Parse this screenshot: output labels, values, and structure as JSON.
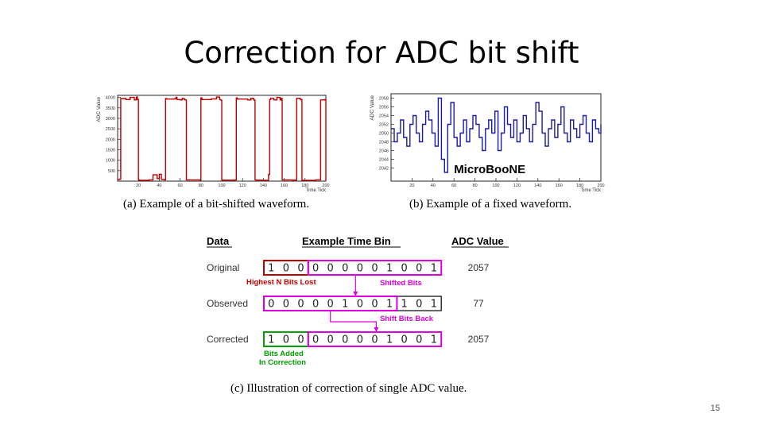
{
  "title": "Correction for ADC bit shift",
  "slide_number": "15",
  "colors": {
    "red": "#c00000",
    "blue": "#1a1aa8",
    "magenta": "#dd00dd",
    "green": "#00a000",
    "gray": "#555555"
  },
  "chart_data": [
    {
      "type": "line",
      "xlabel": "Time Tick",
      "ylabel": "ADC Value",
      "xlim": [
        0,
        200
      ],
      "ylim": [
        0,
        4100
      ],
      "xticks": [
        "20",
        "40",
        "60",
        "80",
        "100",
        "120",
        "140",
        "160",
        "180",
        "200"
      ],
      "yticks": [
        "500",
        "1000",
        "1500",
        "2000",
        "2500",
        "3000",
        "3500",
        "4000"
      ],
      "series": [
        {
          "color": "#c00000",
          "x": [
            0,
            2,
            3,
            8,
            12,
            16,
            18,
            19,
            20,
            21,
            30,
            34,
            38,
            40,
            42,
            45,
            46,
            47,
            55,
            56,
            57,
            60,
            62,
            64,
            65,
            66,
            79,
            80,
            81,
            90,
            95,
            98,
            99,
            100,
            113,
            114,
            115,
            125,
            128,
            130,
            131,
            132,
            133,
            140,
            145,
            146,
            147,
            150,
            153,
            156,
            157,
            158,
            168,
            172,
            175,
            176,
            177,
            190,
            195,
            199,
            200
          ],
          "y": [
            80,
            90,
            3950,
            3900,
            4000,
            3880,
            4020,
            3900,
            60,
            40,
            60,
            300,
            120,
            330,
            80,
            60,
            3950,
            3920,
            3940,
            4010,
            3900,
            3880,
            3950,
            3900,
            3880,
            60,
            50,
            3980,
            3900,
            3930,
            4020,
            3900,
            3870,
            50,
            60,
            3980,
            3920,
            3880,
            3960,
            3930,
            3870,
            60,
            50,
            40,
            320,
            3900,
            3960,
            3880,
            4000,
            3880,
            3950,
            60,
            50,
            3960,
            3920,
            3890,
            40,
            60,
            3880,
            3900,
            60
          ]
        }
      ],
      "caption": "(a) Example of a bit-shifted waveform."
    },
    {
      "type": "line",
      "xlabel": "Time Tick",
      "ylabel": "ADC Value",
      "xlim": [
        0,
        200
      ],
      "ylim": [
        2039,
        2059
      ],
      "xticks": [
        "20",
        "40",
        "60",
        "80",
        "100",
        "120",
        "140",
        "160",
        "180",
        "200"
      ],
      "yticks": [
        "2042",
        "2044",
        "2046",
        "2048",
        "2050",
        "2052",
        "2054",
        "2056",
        "2058"
      ],
      "series": [
        {
          "color": "#1a1aa8",
          "x": [
            0,
            3,
            6,
            9,
            12,
            15,
            18,
            21,
            24,
            27,
            30,
            33,
            36,
            39,
            42,
            45,
            48,
            51,
            54,
            57,
            60,
            63,
            66,
            69,
            72,
            75,
            78,
            81,
            84,
            87,
            90,
            93,
            96,
            99,
            102,
            105,
            108,
            111,
            114,
            117,
            120,
            123,
            126,
            129,
            132,
            135,
            138,
            141,
            144,
            147,
            150,
            153,
            156,
            159,
            162,
            165,
            168,
            171,
            174,
            177,
            180,
            183,
            186,
            189,
            192,
            195,
            198,
            200
          ],
          "y": [
            2051,
            2048,
            2050,
            2053,
            2049,
            2047,
            2052,
            2054,
            2050,
            2048,
            2052,
            2055,
            2053,
            2050,
            2047,
            2058,
            2044,
            2041,
            2052,
            2057,
            2049,
            2047,
            2050,
            2053,
            2048,
            2051,
            2054,
            2052,
            2049,
            2046,
            2051,
            2053,
            2050,
            2055,
            2046,
            2050,
            2056,
            2052,
            2049,
            2053,
            2048,
            2050,
            2054,
            2051,
            2048,
            2052,
            2057,
            2055,
            2050,
            2047,
            2051,
            2053,
            2049,
            2052,
            2056,
            2050,
            2048,
            2053,
            2051,
            2049,
            2052,
            2054,
            2050,
            2048,
            2053,
            2051,
            2050,
            2052
          ]
        }
      ],
      "annotation": "Micro.Boo.NE",
      "caption": "(b) Example of a fixed waveform."
    },
    {
      "type": "table",
      "headers": [
        "Data",
        "Example Time Bin",
        "ADC Value"
      ],
      "rows": [
        {
          "label": "Original",
          "bits": [
            "1",
            "0",
            "0",
            "0",
            "0",
            "0",
            "0",
            "0",
            "1",
            "0",
            "0",
            "1"
          ],
          "value": "2057"
        },
        {
          "label": "Observed",
          "bits": [
            "0",
            "0",
            "0",
            "0",
            "0",
            "1",
            "0",
            "0",
            "1",
            "1",
            "0",
            "1"
          ],
          "value": "77"
        },
        {
          "label": "Corrected",
          "bits": [
            "1",
            "0",
            "0",
            "0",
            "0",
            "0",
            "0",
            "0",
            "1",
            "0",
            "0",
            "1"
          ],
          "value": "2057"
        }
      ],
      "annotations": {
        "highest_bits_lost": "Highest N Bits Lost",
        "shifted_bits": "Shifted Bits",
        "shift_bits_back": "Shift Bits Back",
        "bits_added_line1": "Bits Added",
        "bits_added_line2": "In Correction"
      },
      "caption": "(c) Illustration of correction of single ADC value."
    }
  ]
}
